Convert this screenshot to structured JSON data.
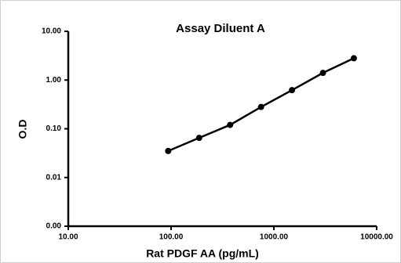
{
  "chart_data": {
    "type": "line",
    "title": "Assay Diluent A",
    "xlabel": "Rat PDGF AA (pg/mL)",
    "ylabel": "O.D",
    "xscale": "log",
    "yscale": "log",
    "x": [
      93.75,
      187.5,
      375,
      750,
      1500,
      3000,
      6000
    ],
    "series": [
      {
        "name": "Assay Diluent A",
        "color": "#000000",
        "values": [
          0.035,
          0.065,
          0.12,
          0.28,
          0.62,
          1.4,
          2.8
        ]
      }
    ],
    "xlim": [
      10,
      10000
    ],
    "xticks": [
      {
        "value": 10,
        "label": "10.00"
      },
      {
        "value": 100,
        "label": "100.00"
      },
      {
        "value": 1000,
        "label": "1000.00"
      },
      {
        "value": 10000,
        "label": "10000.00"
      }
    ],
    "ylim": [
      0.001,
      10
    ],
    "yticks": [
      {
        "value": 0.001,
        "label": "0.00"
      },
      {
        "value": 0.01,
        "label": "0.01"
      },
      {
        "value": 0.1,
        "label": "0.10"
      },
      {
        "value": 1,
        "label": "1.00"
      },
      {
        "value": 10,
        "label": "10.00"
      }
    ]
  }
}
